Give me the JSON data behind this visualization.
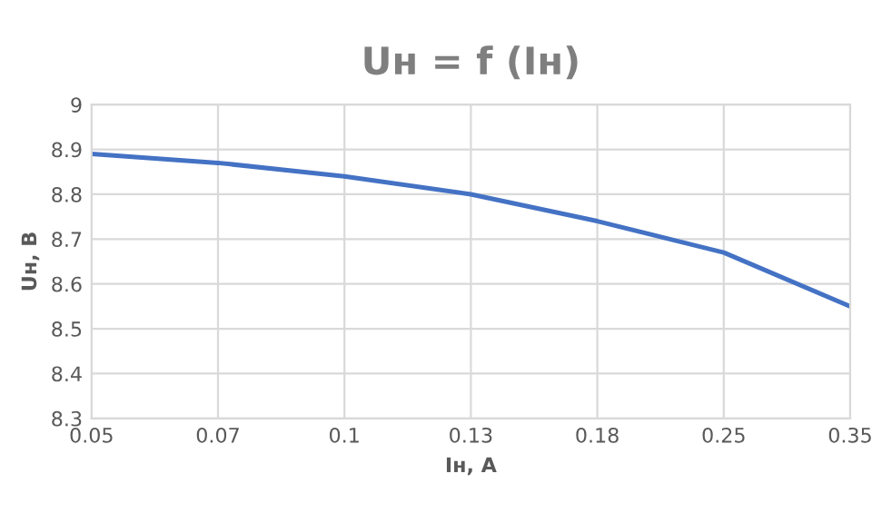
{
  "chart_data": {
    "type": "line",
    "title": "Uн = f (Iн)",
    "xlabel": "Iн, А",
    "ylabel": "Uн, В",
    "categories": [
      "0.05",
      "0.07",
      "0.1",
      "0.13",
      "0.18",
      "0.25",
      "0.35"
    ],
    "series": [
      {
        "color": "#4472c4",
        "values": [
          8.89,
          8.87,
          8.84,
          8.8,
          8.74,
          8.67,
          8.55
        ]
      }
    ],
    "ylim": [
      8.3,
      9
    ],
    "yticks": [
      8.3,
      8.4,
      8.5,
      8.6,
      8.7,
      8.8,
      8.9,
      9
    ],
    "grid": true
  }
}
